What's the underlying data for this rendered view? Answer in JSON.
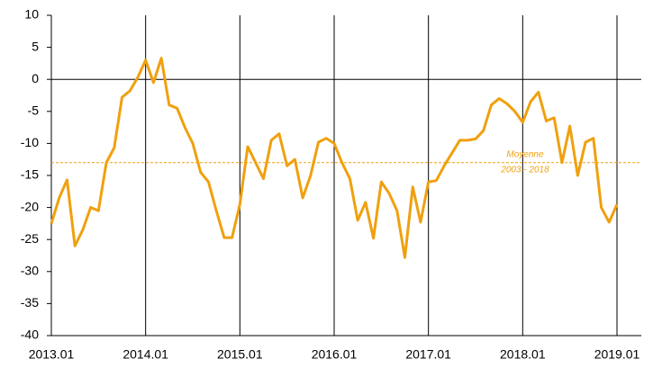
{
  "chart_data": {
    "type": "line",
    "categories": [
      "2013.01",
      null,
      null,
      null,
      null,
      null,
      null,
      null,
      null,
      null,
      null,
      null,
      "2014.01",
      null,
      null,
      null,
      null,
      null,
      null,
      null,
      null,
      null,
      null,
      null,
      "2015.01",
      null,
      null,
      null,
      null,
      null,
      null,
      null,
      null,
      null,
      null,
      null,
      "2016.01",
      null,
      null,
      null,
      null,
      null,
      null,
      null,
      null,
      null,
      null,
      null,
      "2017.01",
      null,
      null,
      null,
      null,
      null,
      null,
      null,
      null,
      null,
      null,
      null,
      "2018.01",
      null,
      null,
      null,
      null,
      null,
      null,
      null,
      null,
      null,
      null,
      null,
      "2019.01"
    ],
    "series": [
      {
        "color": "#f0a00e",
        "values": [
          -22.5,
          -18.5,
          -15.7,
          -26,
          -23.5,
          -20,
          -20.5,
          -13,
          -10.7,
          -2.8,
          -1.8,
          0.3,
          3,
          -0.5,
          3.3,
          -4,
          -4.5,
          -7.5,
          -10,
          -14.5,
          -16,
          -20.5,
          -24.7,
          -24.7,
          -19.5,
          -10.5,
          -13,
          -15.5,
          -9.5,
          -8.5,
          -13.5,
          -12.5,
          -18.5,
          -15,
          -9.8,
          -9.2,
          -10,
          -13,
          -15.5,
          -22,
          -19.2,
          -24.8,
          -16,
          -17.8,
          -20.5,
          -27.8,
          -16.8,
          -22.3,
          -16,
          -15.8,
          -13.5,
          -11.5,
          -9.5,
          -9.5,
          -9.3,
          -8,
          -4,
          -3,
          -3.8,
          -5,
          -6.7,
          -3.5,
          -2,
          -6.5,
          -6,
          -13,
          -7.3,
          -15,
          -9.8,
          -9.2,
          -20,
          -22.3,
          -19.5
        ]
      }
    ],
    "ylim": [
      -40,
      10
    ],
    "yticks": [
      -40,
      -35,
      -30,
      -25,
      -20,
      -15,
      -10,
      -5,
      0,
      5,
      10
    ],
    "reference_line": {
      "value": -13,
      "color": "#f0a00e",
      "label": [
        "Moyenne",
        "2003 - 2018"
      ]
    }
  }
}
